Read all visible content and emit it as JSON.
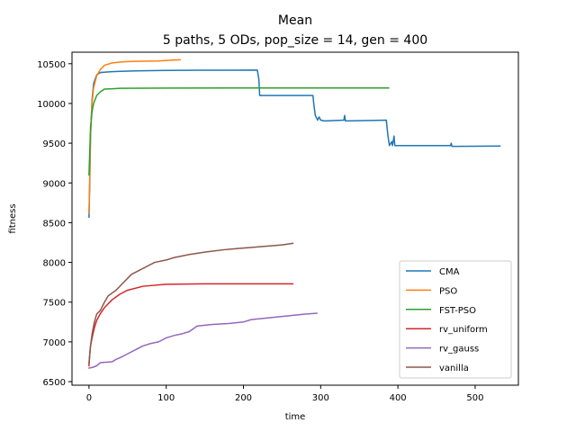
{
  "chart_data": {
    "type": "line",
    "title": "Mean",
    "subtitle": "5 paths, 5 ODs, pop_size = 14, gen = 400",
    "xlabel": "time",
    "ylabel": "fitness",
    "xlim": [
      -22,
      556
    ],
    "ylim": [
      6455,
      10645
    ],
    "xticks": [
      0,
      100,
      200,
      300,
      400,
      500
    ],
    "yticks": [
      6500,
      7000,
      7500,
      8000,
      8500,
      9000,
      9500,
      10000,
      10500
    ],
    "grid": false,
    "legend_position": "lower-right",
    "series": [
      {
        "name": "CMA",
        "color": "#1f77b4",
        "points": [
          [
            0,
            8570
          ],
          [
            1,
            9000
          ],
          [
            2,
            9600
          ],
          [
            4,
            10050
          ],
          [
            6,
            10250
          ],
          [
            10,
            10360
          ],
          [
            15,
            10390
          ],
          [
            30,
            10400
          ],
          [
            60,
            10410
          ],
          [
            100,
            10415
          ],
          [
            150,
            10418
          ],
          [
            218,
            10420
          ],
          [
            220,
            10300
          ],
          [
            221,
            10100
          ],
          [
            240,
            10100
          ],
          [
            290,
            10100
          ],
          [
            291,
            10000
          ],
          [
            293,
            9850
          ],
          [
            296,
            9790
          ],
          [
            298,
            9830
          ],
          [
            300,
            9790
          ],
          [
            305,
            9780
          ],
          [
            330,
            9790
          ],
          [
            331,
            9850
          ],
          [
            332,
            9780
          ],
          [
            385,
            9790
          ],
          [
            387,
            9600
          ],
          [
            389,
            9470
          ],
          [
            392,
            9520
          ],
          [
            393,
            9470
          ],
          [
            395,
            9590
          ],
          [
            396,
            9470
          ],
          [
            468,
            9470
          ],
          [
            469,
            9500
          ],
          [
            470,
            9460
          ],
          [
            532,
            9465
          ]
        ]
      },
      {
        "name": "PSO",
        "color": "#ff7f0e",
        "points": [
          [
            0,
            8620
          ],
          [
            1,
            9100
          ],
          [
            2,
            9600
          ],
          [
            4,
            10000
          ],
          [
            6,
            10200
          ],
          [
            10,
            10350
          ],
          [
            15,
            10430
          ],
          [
            20,
            10480
          ],
          [
            30,
            10510
          ],
          [
            45,
            10525
          ],
          [
            60,
            10530
          ],
          [
            90,
            10535
          ],
          [
            105,
            10545
          ],
          [
            118,
            10550
          ]
        ]
      },
      {
        "name": "FST-PSO",
        "color": "#2ca02c",
        "points": [
          [
            0,
            9100
          ],
          [
            1,
            9400
          ],
          [
            2,
            9700
          ],
          [
            4,
            9900
          ],
          [
            6,
            10000
          ],
          [
            10,
            10100
          ],
          [
            15,
            10150
          ],
          [
            20,
            10180
          ],
          [
            40,
            10190
          ],
          [
            100,
            10193
          ],
          [
            200,
            10195
          ],
          [
            300,
            10195
          ],
          [
            388,
            10195
          ]
        ]
      },
      {
        "name": "rv_uniform",
        "color": "#d62728",
        "points": [
          [
            0,
            6700
          ],
          [
            1,
            6850
          ],
          [
            2,
            6950
          ],
          [
            4,
            7050
          ],
          [
            7,
            7180
          ],
          [
            10,
            7270
          ],
          [
            15,
            7360
          ],
          [
            20,
            7430
          ],
          [
            30,
            7530
          ],
          [
            40,
            7600
          ],
          [
            50,
            7650
          ],
          [
            70,
            7700
          ],
          [
            100,
            7725
          ],
          [
            150,
            7730
          ],
          [
            200,
            7730
          ],
          [
            264,
            7730
          ]
        ]
      },
      {
        "name": "rv_gauss",
        "color": "#9467bd",
        "points": [
          [
            0,
            6670
          ],
          [
            5,
            6680
          ],
          [
            10,
            6700
          ],
          [
            15,
            6740
          ],
          [
            30,
            6750
          ],
          [
            35,
            6780
          ],
          [
            40,
            6800
          ],
          [
            50,
            6850
          ],
          [
            60,
            6900
          ],
          [
            70,
            6950
          ],
          [
            80,
            6980
          ],
          [
            90,
            7000
          ],
          [
            100,
            7050
          ],
          [
            110,
            7080
          ],
          [
            120,
            7100
          ],
          [
            130,
            7130
          ],
          [
            140,
            7200
          ],
          [
            160,
            7220
          ],
          [
            180,
            7230
          ],
          [
            200,
            7250
          ],
          [
            210,
            7280
          ],
          [
            230,
            7300
          ],
          [
            250,
            7320
          ],
          [
            270,
            7340
          ],
          [
            280,
            7350
          ],
          [
            295,
            7360
          ]
        ]
      },
      {
        "name": "vanilla",
        "color": "#8c564b",
        "points": [
          [
            0,
            6730
          ],
          [
            2,
            6950
          ],
          [
            4,
            7100
          ],
          [
            7,
            7250
          ],
          [
            10,
            7350
          ],
          [
            15,
            7400
          ],
          [
            20,
            7500
          ],
          [
            25,
            7580
          ],
          [
            35,
            7650
          ],
          [
            45,
            7750
          ],
          [
            55,
            7850
          ],
          [
            65,
            7900
          ],
          [
            75,
            7950
          ],
          [
            85,
            8000
          ],
          [
            100,
            8030
          ],
          [
            110,
            8060
          ],
          [
            130,
            8100
          ],
          [
            150,
            8130
          ],
          [
            175,
            8160
          ],
          [
            200,
            8180
          ],
          [
            225,
            8200
          ],
          [
            250,
            8220
          ],
          [
            264,
            8240
          ]
        ]
      }
    ]
  }
}
